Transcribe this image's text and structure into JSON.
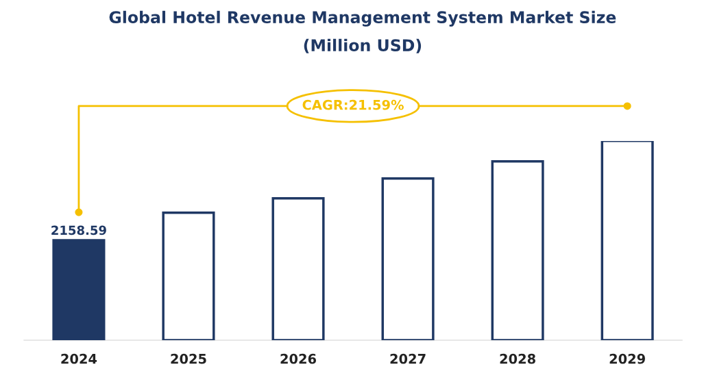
{
  "chart_data": {
    "type": "bar",
    "title": "Global Hotel Revenue Management System Market Size\n(Million USD)",
    "categories": [
      "2024",
      "2025",
      "2026",
      "2027",
      "2028",
      "2029"
    ],
    "values": [
      2158.59,
      2750,
      3060,
      3490,
      3860,
      4300
    ],
    "colors": [
      "#1f3864",
      "#ffffff",
      "#ffffff",
      "#ffffff",
      "#ffffff",
      "#ffffff"
    ],
    "value_labels": [
      "2158.59",
      null,
      null,
      null,
      null,
      null
    ],
    "tick_labels": "x",
    "annotations": [
      "CAGR:21.59%"
    ],
    "grid": false,
    "legend": false
  }
}
